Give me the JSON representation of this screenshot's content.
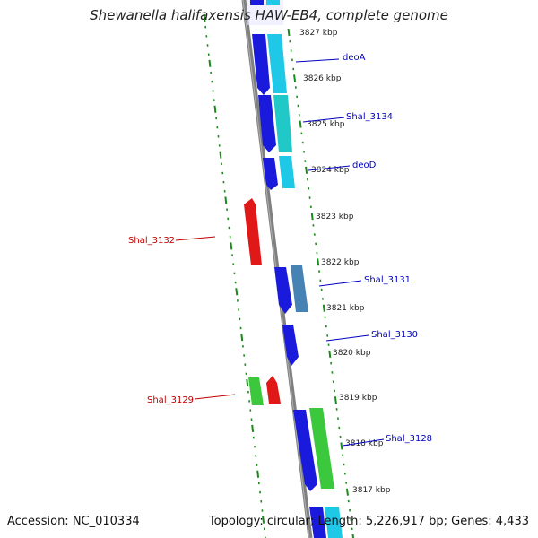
{
  "title": "Shewanella halifaxensis HAW-EB4, complete genome",
  "accession": "Accession: NC_010334",
  "summary": "Topology: circular; Length: 5,226,917 bp; Genes: 4,433",
  "colors": {
    "backbone": "#808080",
    "tick_ruler": "#1a8a1a",
    "forward_label": "#0000c0",
    "reverse_label": "#c00000",
    "gene_blue": "#1a1adc",
    "gene_cyan": "#20c8e8",
    "gene_teal": "#20c8c8",
    "gene_steel": "#4682b4",
    "gene_red": "#e01818",
    "gene_green": "#3cc83c"
  },
  "scale_ticks": [
    "3827 kbp",
    "3826 kbp",
    "3825 kbp",
    "3824 kbp",
    "3823 kbp",
    "3822 kbp",
    "3821 kbp",
    "3820 kbp",
    "3819 kbp",
    "3818 kbp",
    "3817 kbp"
  ],
  "gene_labels": {
    "deoA": "deoA",
    "shal_3134": "Shal_3134",
    "deoD": "deoD",
    "shal_3132": "Shal_3132",
    "shal_3131": "Shal_3131",
    "shal_3130": "Shal_3130",
    "shal_3129": "Shal_3129",
    "shal_3128": "Shal_3128"
  }
}
